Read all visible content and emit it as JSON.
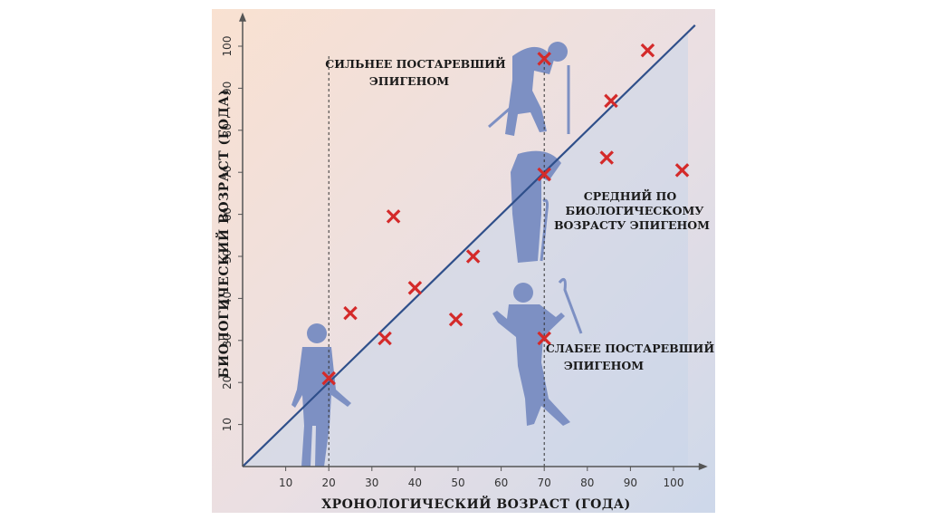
{
  "chart_data": {
    "type": "scatter",
    "xlabel": "ХРОНОЛОГИЧЕСКИЙ ВОЗРАСТ (ГОДА)",
    "ylabel": "БИОЛОГИЧЕСКИЙ ВОЗРАСТ (ГОДА)",
    "xlim": [
      0,
      105
    ],
    "ylim": [
      0,
      105
    ],
    "xticks": [
      10,
      20,
      30,
      40,
      50,
      60,
      70,
      80,
      90,
      100
    ],
    "yticks": [
      10,
      20,
      30,
      40,
      50,
      60,
      70,
      80,
      90,
      100
    ],
    "grid": false,
    "reference_line": {
      "from": [
        0,
        0
      ],
      "to": [
        105,
        105
      ],
      "color": "#2f4f8a"
    },
    "guide_lines": [
      20,
      70
    ],
    "marker": {
      "shape": "x",
      "color": "#d42a2a"
    },
    "points": [
      {
        "x": 20,
        "y": 21
      },
      {
        "x": 25,
        "y": 36.5
      },
      {
        "x": 33,
        "y": 30.5
      },
      {
        "x": 35,
        "y": 59.5
      },
      {
        "x": 40,
        "y": 42.5
      },
      {
        "x": 49.5,
        "y": 35
      },
      {
        "x": 53.5,
        "y": 50
      },
      {
        "x": 70,
        "y": 30.5
      },
      {
        "x": 70,
        "y": 69.5
      },
      {
        "x": 70,
        "y": 97
      },
      {
        "x": 84.5,
        "y": 73.5
      },
      {
        "x": 85.5,
        "y": 87
      },
      {
        "x": 94,
        "y": 99
      },
      {
        "x": 102,
        "y": 70.5
      }
    ],
    "annotations": [
      {
        "lines": [
          "СИЛЬНЕЕ ПОСТАРЕВШИЙ",
          "ЭПИГЕНОМ"
        ]
      },
      {
        "lines": [
          "СРЕДНИЙ ПО",
          "БИОЛОГИЧЕСКОМУ",
          "ВОЗРАСТУ ЭПИГЕНОМ"
        ]
      },
      {
        "lines": [
          "СЛАБЕЕ ПОСТАРЕВШИЙ",
          "ЭПИГЕНОМ"
        ]
      }
    ],
    "colors": {
      "upper_region": "#f7dccb",
      "lower_region": "#cfd9ea",
      "figures": "#7b8fc2"
    }
  }
}
